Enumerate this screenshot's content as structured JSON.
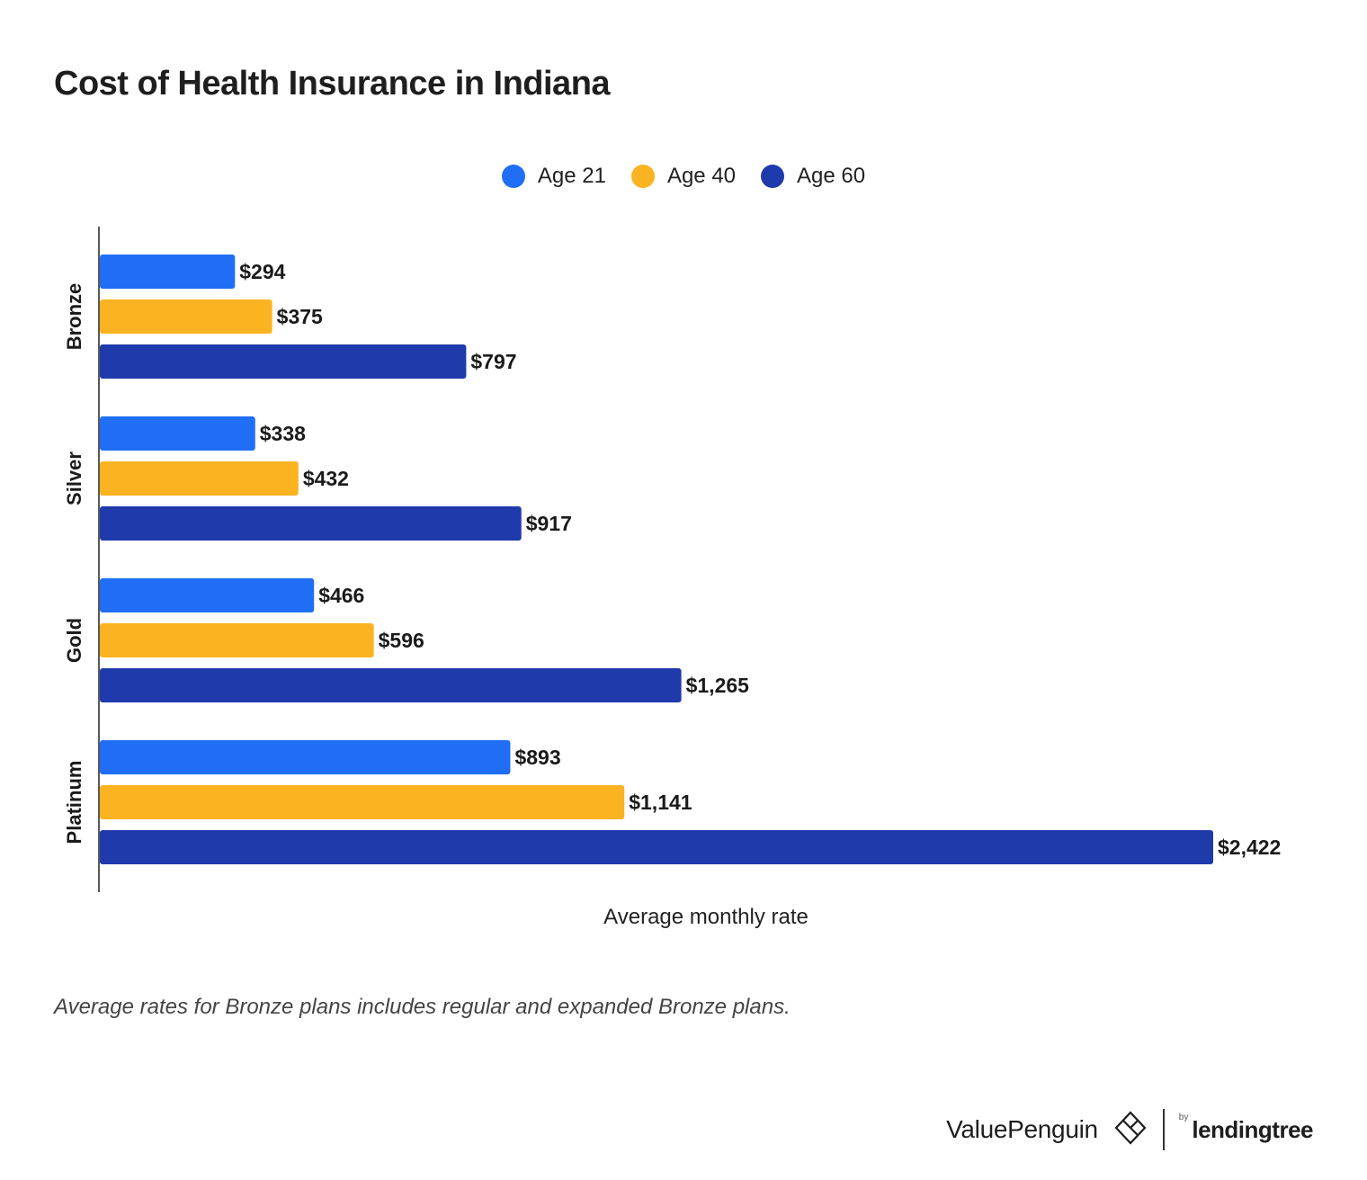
{
  "title": "Cost of Health Insurance in Indiana",
  "note": "Average rates for Bronze plans includes regular and expanded Bronze plans.",
  "brand": {
    "valuepenguin": "ValuePenguin",
    "by": "by",
    "lendingtree": "lendingtree"
  },
  "colors": {
    "age21": "#1f6ef5",
    "age40": "#fbb321",
    "age60": "#1f3aab"
  },
  "chart_data": {
    "type": "bar",
    "orientation": "horizontal",
    "title": "Cost of Health Insurance in Indiana",
    "xlabel": "Average monthly rate",
    "ylabel": "",
    "categories": [
      "Bronze",
      "Silver",
      "Gold",
      "Platinum"
    ],
    "series": [
      {
        "name": "Age 21",
        "color": "#1f6ef5",
        "values": [
          294,
          338,
          466,
          893
        ],
        "labels": [
          "$294",
          "$338",
          "$466",
          "$893"
        ]
      },
      {
        "name": "Age 40",
        "color": "#fbb321",
        "values": [
          375,
          432,
          596,
          1141
        ],
        "labels": [
          "$375",
          "$432",
          "$596",
          "$1,141"
        ]
      },
      {
        "name": "Age 60",
        "color": "#1f3aab",
        "values": [
          797,
          917,
          1265,
          2422
        ],
        "labels": [
          "$797",
          "$917",
          "$1,265",
          "$2,422"
        ]
      }
    ],
    "xlim": [
      0,
      2422
    ],
    "grid": false,
    "legend": "top-center"
  }
}
